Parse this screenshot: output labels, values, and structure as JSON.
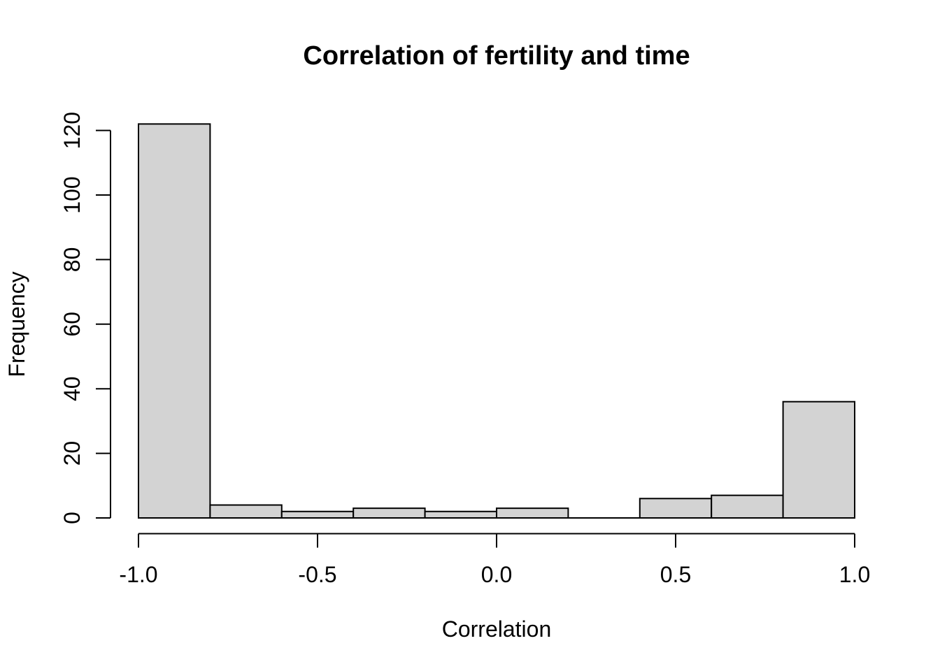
{
  "chart_data": {
    "type": "bar",
    "subtype": "histogram",
    "title": "Correlation of fertility and time",
    "xlabel": "Correlation",
    "ylabel": "Frequency",
    "bin_breaks": [
      -1.0,
      -0.8,
      -0.6,
      -0.4,
      -0.2,
      0.0,
      0.2,
      0.4,
      0.6,
      0.8,
      1.0
    ],
    "counts": [
      122,
      4,
      2,
      3,
      2,
      3,
      0,
      6,
      7,
      36
    ],
    "x_ticks": [
      {
        "value": -1.0,
        "label": "-1.0"
      },
      {
        "value": -0.5,
        "label": "-0.5"
      },
      {
        "value": 0.0,
        "label": "0.0"
      },
      {
        "value": 0.5,
        "label": "0.5"
      },
      {
        "value": 1.0,
        "label": "1.0"
      }
    ],
    "y_ticks": [
      {
        "value": 0,
        "label": "0"
      },
      {
        "value": 20,
        "label": "20"
      },
      {
        "value": 40,
        "label": "40"
      },
      {
        "value": 60,
        "label": "60"
      },
      {
        "value": 80,
        "label": "80"
      },
      {
        "value": 100,
        "label": "100"
      },
      {
        "value": 120,
        "label": "120"
      }
    ],
    "xlim": [
      -1.0,
      1.0
    ],
    "ylim": [
      0,
      122
    ],
    "grid": false,
    "legend": false,
    "colors": {
      "bar_fill": "#d3d3d3",
      "bar_border": "#000000",
      "axis": "#000000",
      "text": "#000000",
      "background": "#ffffff"
    }
  }
}
